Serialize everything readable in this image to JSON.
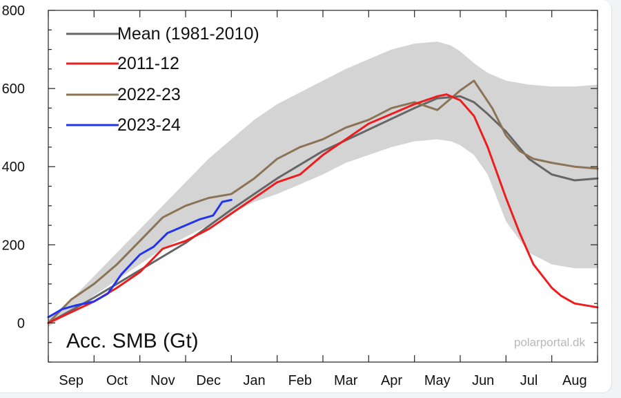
{
  "chart_data": {
    "type": "line",
    "title": "",
    "ylabel": "Acc. SMB (Gt)",
    "xlabel": "",
    "credit": "polarportal.dk",
    "x_unit": "months since 1 Sep",
    "xlim": [
      0,
      12
    ],
    "ylim": [
      -100,
      800
    ],
    "y_ticks": [
      0,
      200,
      400,
      600,
      800
    ],
    "y_tick_labels": [
      "0",
      "200",
      "400",
      "600",
      "800"
    ],
    "month_labels": [
      "Sep",
      "Oct",
      "Nov",
      "Dec",
      "Jan",
      "Feb",
      "Mar",
      "Apr",
      "May",
      "Jun",
      "Jul",
      "Aug"
    ],
    "grid": false,
    "legend_position": "top-left",
    "band": {
      "x": [
        0,
        0.5,
        1,
        1.5,
        2,
        2.5,
        3,
        3.5,
        4,
        4.5,
        5,
        5.5,
        6,
        6.5,
        7,
        7.5,
        8,
        8.5,
        8.8,
        9,
        9.3,
        9.6,
        10,
        10.5,
        11,
        11.5,
        12
      ],
      "upper": [
        10,
        60,
        120,
        180,
        240,
        300,
        360,
        420,
        470,
        520,
        560,
        590,
        620,
        650,
        675,
        700,
        715,
        720,
        710,
        695,
        665,
        640,
        620,
        610,
        605,
        605,
        610
      ],
      "lower": [
        -10,
        30,
        70,
        110,
        150,
        190,
        220,
        250,
        280,
        310,
        330,
        355,
        380,
        410,
        430,
        450,
        465,
        470,
        465,
        455,
        430,
        380,
        260,
        180,
        150,
        140,
        140
      ]
    },
    "series": [
      {
        "name": "Mean (1981-2010)",
        "color": "#666666",
        "x": [
          0,
          1,
          2,
          3,
          4,
          5,
          6,
          7,
          8,
          8.5,
          9,
          9.3,
          9.6,
          10,
          10.5,
          11,
          11.5,
          12
        ],
        "y": [
          0,
          65,
          135,
          205,
          290,
          370,
          440,
          495,
          550,
          575,
          580,
          565,
          535,
          490,
          420,
          380,
          365,
          370
        ]
      },
      {
        "name": "2011-12",
        "color": "#ee1c1c",
        "x": [
          0,
          1,
          1.5,
          2,
          2.5,
          3,
          3.5,
          4,
          4.5,
          5,
          5.5,
          6,
          6.5,
          7,
          7.5,
          8,
          8.5,
          8.7,
          9,
          9.3,
          9.6,
          10,
          10.3,
          10.6,
          11,
          11.2,
          11.5,
          12
        ],
        "y": [
          0,
          55,
          90,
          130,
          190,
          210,
          240,
          280,
          320,
          360,
          380,
          430,
          470,
          510,
          535,
          560,
          580,
          585,
          570,
          530,
          450,
          320,
          230,
          150,
          90,
          70,
          50,
          40
        ]
      },
      {
        "name": "2022-23",
        "color": "#8b7355",
        "x": [
          0,
          0.5,
          1,
          1.5,
          2,
          2.5,
          3,
          3.5,
          4,
          4.5,
          5,
          5.5,
          6,
          6.5,
          7,
          7.5,
          8,
          8.5,
          9,
          9.3,
          9.7,
          10,
          10.3,
          10.6,
          11,
          11.5,
          12
        ],
        "y": [
          0,
          60,
          100,
          150,
          210,
          270,
          300,
          320,
          330,
          370,
          420,
          450,
          470,
          500,
          520,
          550,
          565,
          545,
          595,
          620,
          550,
          480,
          440,
          420,
          410,
          400,
          395
        ]
      },
      {
        "name": "2023-24",
        "color": "#2233ee",
        "x": [
          0,
          0.3,
          0.6,
          1,
          1.3,
          1.6,
          2,
          2.3,
          2.6,
          3,
          3.3,
          3.6,
          3.8,
          4
        ],
        "y": [
          15,
          35,
          45,
          55,
          75,
          125,
          175,
          195,
          230,
          250,
          265,
          275,
          310,
          315
        ]
      }
    ]
  }
}
